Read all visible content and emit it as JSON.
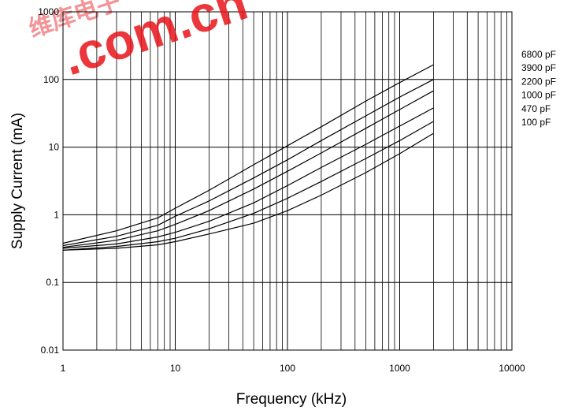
{
  "watermark": {
    "main": ".com.cn",
    "sub": "维库电子"
  },
  "chart_data": {
    "type": "line",
    "title": "",
    "xlabel": "Frequency (kHz)",
    "ylabel": "Supply Current (mA)",
    "x_scale": "log",
    "y_scale": "log",
    "xlim": [
      1,
      10000
    ],
    "ylim": [
      0.01,
      1000
    ],
    "x_ticks": [
      "1",
      "10",
      "100",
      "1000",
      "10000"
    ],
    "y_ticks": [
      "0.01",
      "0.1",
      "1",
      "10",
      "100",
      "1000"
    ],
    "grid": true,
    "legend_placement": "right",
    "x": [
      1,
      3,
      7,
      10,
      20,
      50,
      100,
      200,
      500,
      1000,
      2000
    ],
    "series": [
      {
        "name": "6800 pF",
        "values": [
          0.38,
          0.58,
          0.9,
          1.25,
          2.3,
          5.5,
          10.5,
          20,
          48,
          90,
          165
        ]
      },
      {
        "name": "3900 pF",
        "values": [
          0.35,
          0.48,
          0.7,
          0.95,
          1.6,
          3.5,
          6.5,
          12.5,
          29,
          55,
          100
        ]
      },
      {
        "name": "2200 pF",
        "values": [
          0.33,
          0.42,
          0.58,
          0.72,
          1.15,
          2.4,
          4.4,
          8.2,
          19,
          36,
          68
        ]
      },
      {
        "name": "1000 pF",
        "values": [
          0.32,
          0.37,
          0.47,
          0.55,
          0.8,
          1.5,
          2.7,
          5,
          11,
          20.5,
          38
        ]
      },
      {
        "name": "470 pF",
        "values": [
          0.3,
          0.34,
          0.4,
          0.45,
          0.62,
          1.05,
          1.75,
          3.1,
          6.8,
          12.5,
          24
        ]
      },
      {
        "name": "100 pF",
        "values": [
          0.3,
          0.32,
          0.36,
          0.4,
          0.52,
          0.75,
          1.15,
          1.95,
          4.2,
          8,
          16
        ]
      }
    ]
  }
}
